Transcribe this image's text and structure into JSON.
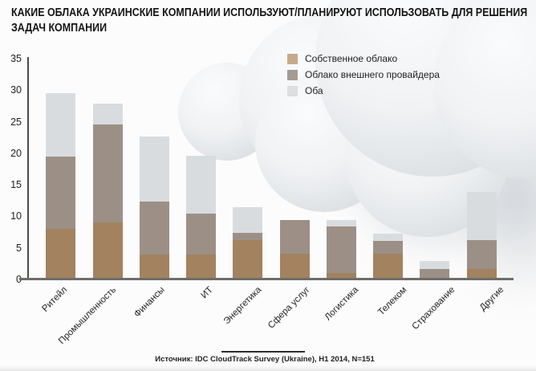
{
  "title_line1": "КАКИЕ ОБЛАКА УКРАИНСКИЕ КОМПАНИИ ИСПОЛЬЗУЮТ/ПЛАНИРУЮТ ИСПОЛЬЗОВАТЬ ДЛЯ РЕШЕНИЯ",
  "title_line2": "ЗАДАЧ КОМПАНИИ",
  "source": "Источник: IDC CloudTrack Survey (Ukraine), H1 2014, N=151",
  "chart_data": {
    "type": "bar",
    "stacked": true,
    "title": "Какие облака украинские компании используют/планируют использовать для решения задач компании",
    "categories": [
      "Ритейл",
      "Промышленность",
      "Финансы",
      "ИТ",
      "Энергетика",
      "Сфера услуг",
      "Логистика",
      "Телеком",
      "Страхование",
      "Другие"
    ],
    "series": [
      {
        "name": "Собственное облако",
        "color": "#a2825f",
        "legend_color": "#c6aa8b",
        "values": [
          8.0,
          9.0,
          4.0,
          4.0,
          6.2,
          4.1,
          1.0,
          4.1,
          0,
          1.7
        ]
      },
      {
        "name": "Облако внешнего провайдера",
        "color": "#9c9086",
        "legend_color": "#a59b94",
        "values": [
          11.5,
          15.6,
          8.3,
          6.5,
          1.2,
          5.3,
          7.4,
          2.0,
          1.6,
          4.5
        ]
      },
      {
        "name": "Оба",
        "color": "#d9dcdf",
        "legend_color": "#dcdee0",
        "values": [
          10.0,
          3.3,
          10.4,
          9.1,
          4.0,
          0,
          1.0,
          1.2,
          1.3,
          7.7
        ]
      }
    ],
    "totals": [
      29.5,
      27.9,
      22.7,
      19.6,
      11.4,
      9.4,
      9.4,
      7.3,
      2.9,
      13.9
    ],
    "xlabel": "",
    "ylabel": "",
    "ylim": [
      0,
      35
    ],
    "yticks": [
      0,
      5,
      10,
      15,
      20,
      25,
      30,
      35
    ],
    "grid": false,
    "legend_position": "top-center",
    "xlabel_rotation_deg": -45
  }
}
